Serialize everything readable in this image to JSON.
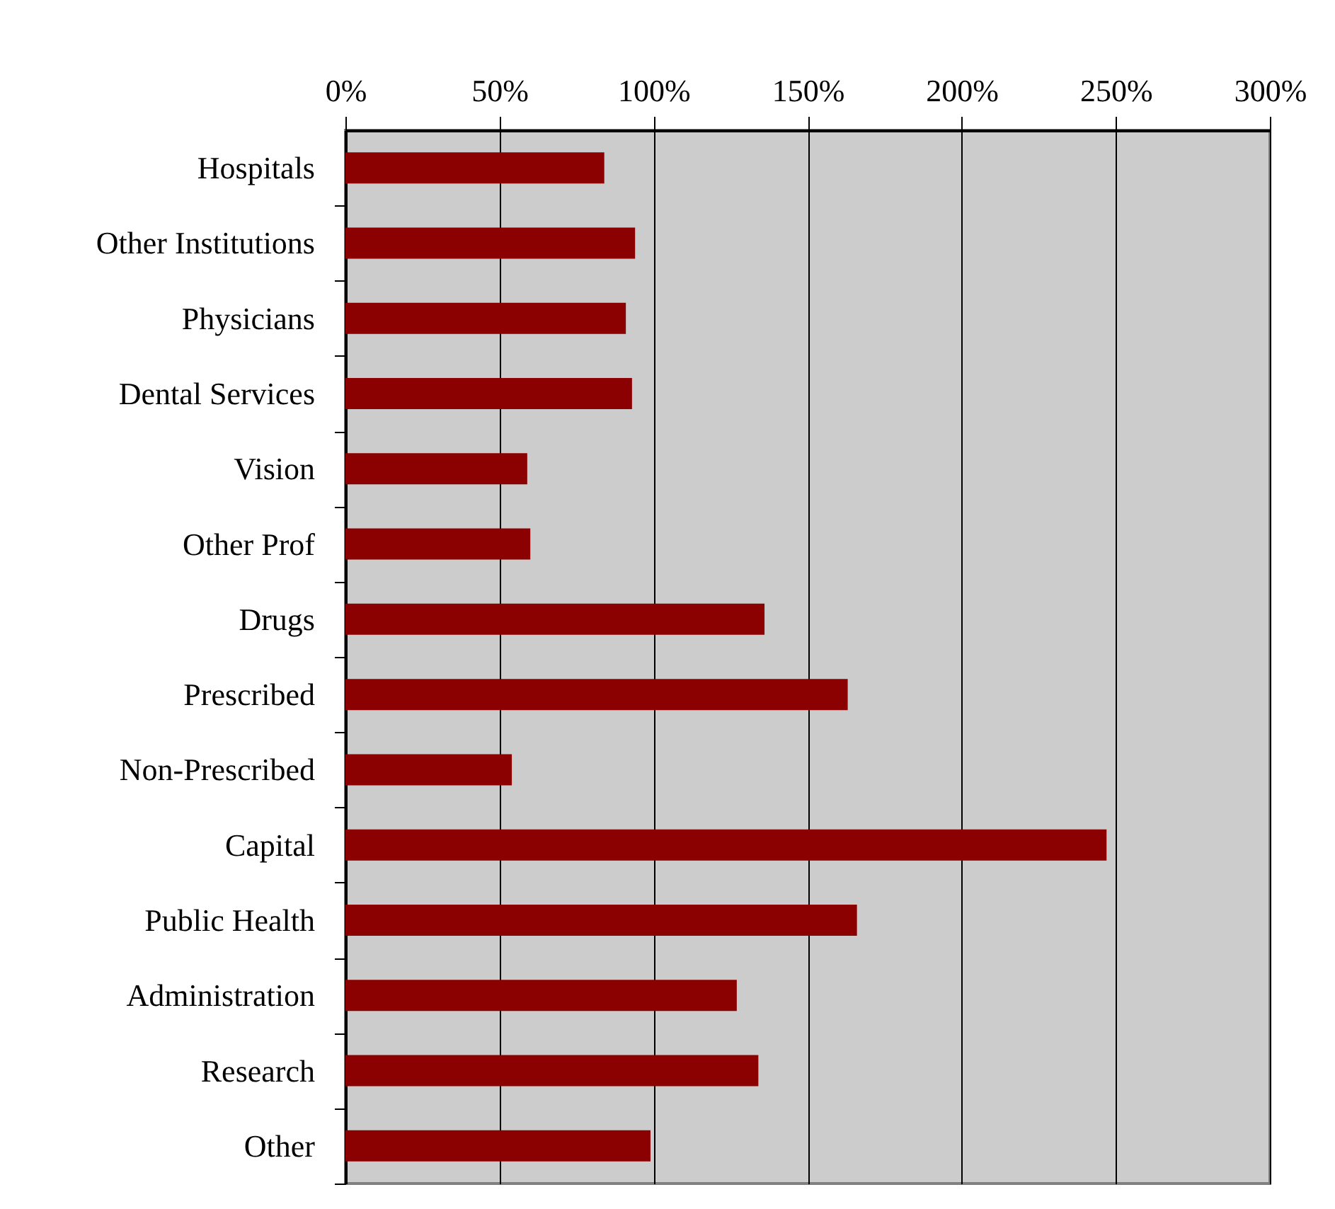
{
  "chart_data": {
    "type": "bar",
    "orientation": "horizontal",
    "categories": [
      "Hospitals",
      "Other Institutions",
      "Physicians",
      "Dental Services",
      "Vision",
      "Other Prof",
      "Drugs",
      "Prescribed",
      "Non-Prescribed",
      "Capital",
      "Public Health",
      "Administration",
      "Research",
      "Other"
    ],
    "values": [
      84,
      94,
      91,
      93,
      59,
      60,
      136,
      163,
      54,
      247,
      166,
      127,
      134,
      99
    ],
    "color": "#8b0000",
    "xlim": [
      0,
      300
    ],
    "xticks": [
      {
        "value": 0,
        "label": "0%"
      },
      {
        "value": 50,
        "label": "50%"
      },
      {
        "value": 100,
        "label": "100%"
      },
      {
        "value": 150,
        "label": "150%"
      },
      {
        "value": 200,
        "label": "200%"
      },
      {
        "value": 250,
        "label": "250%"
      },
      {
        "value": 300,
        "label": "300%"
      }
    ],
    "grid": "x"
  }
}
